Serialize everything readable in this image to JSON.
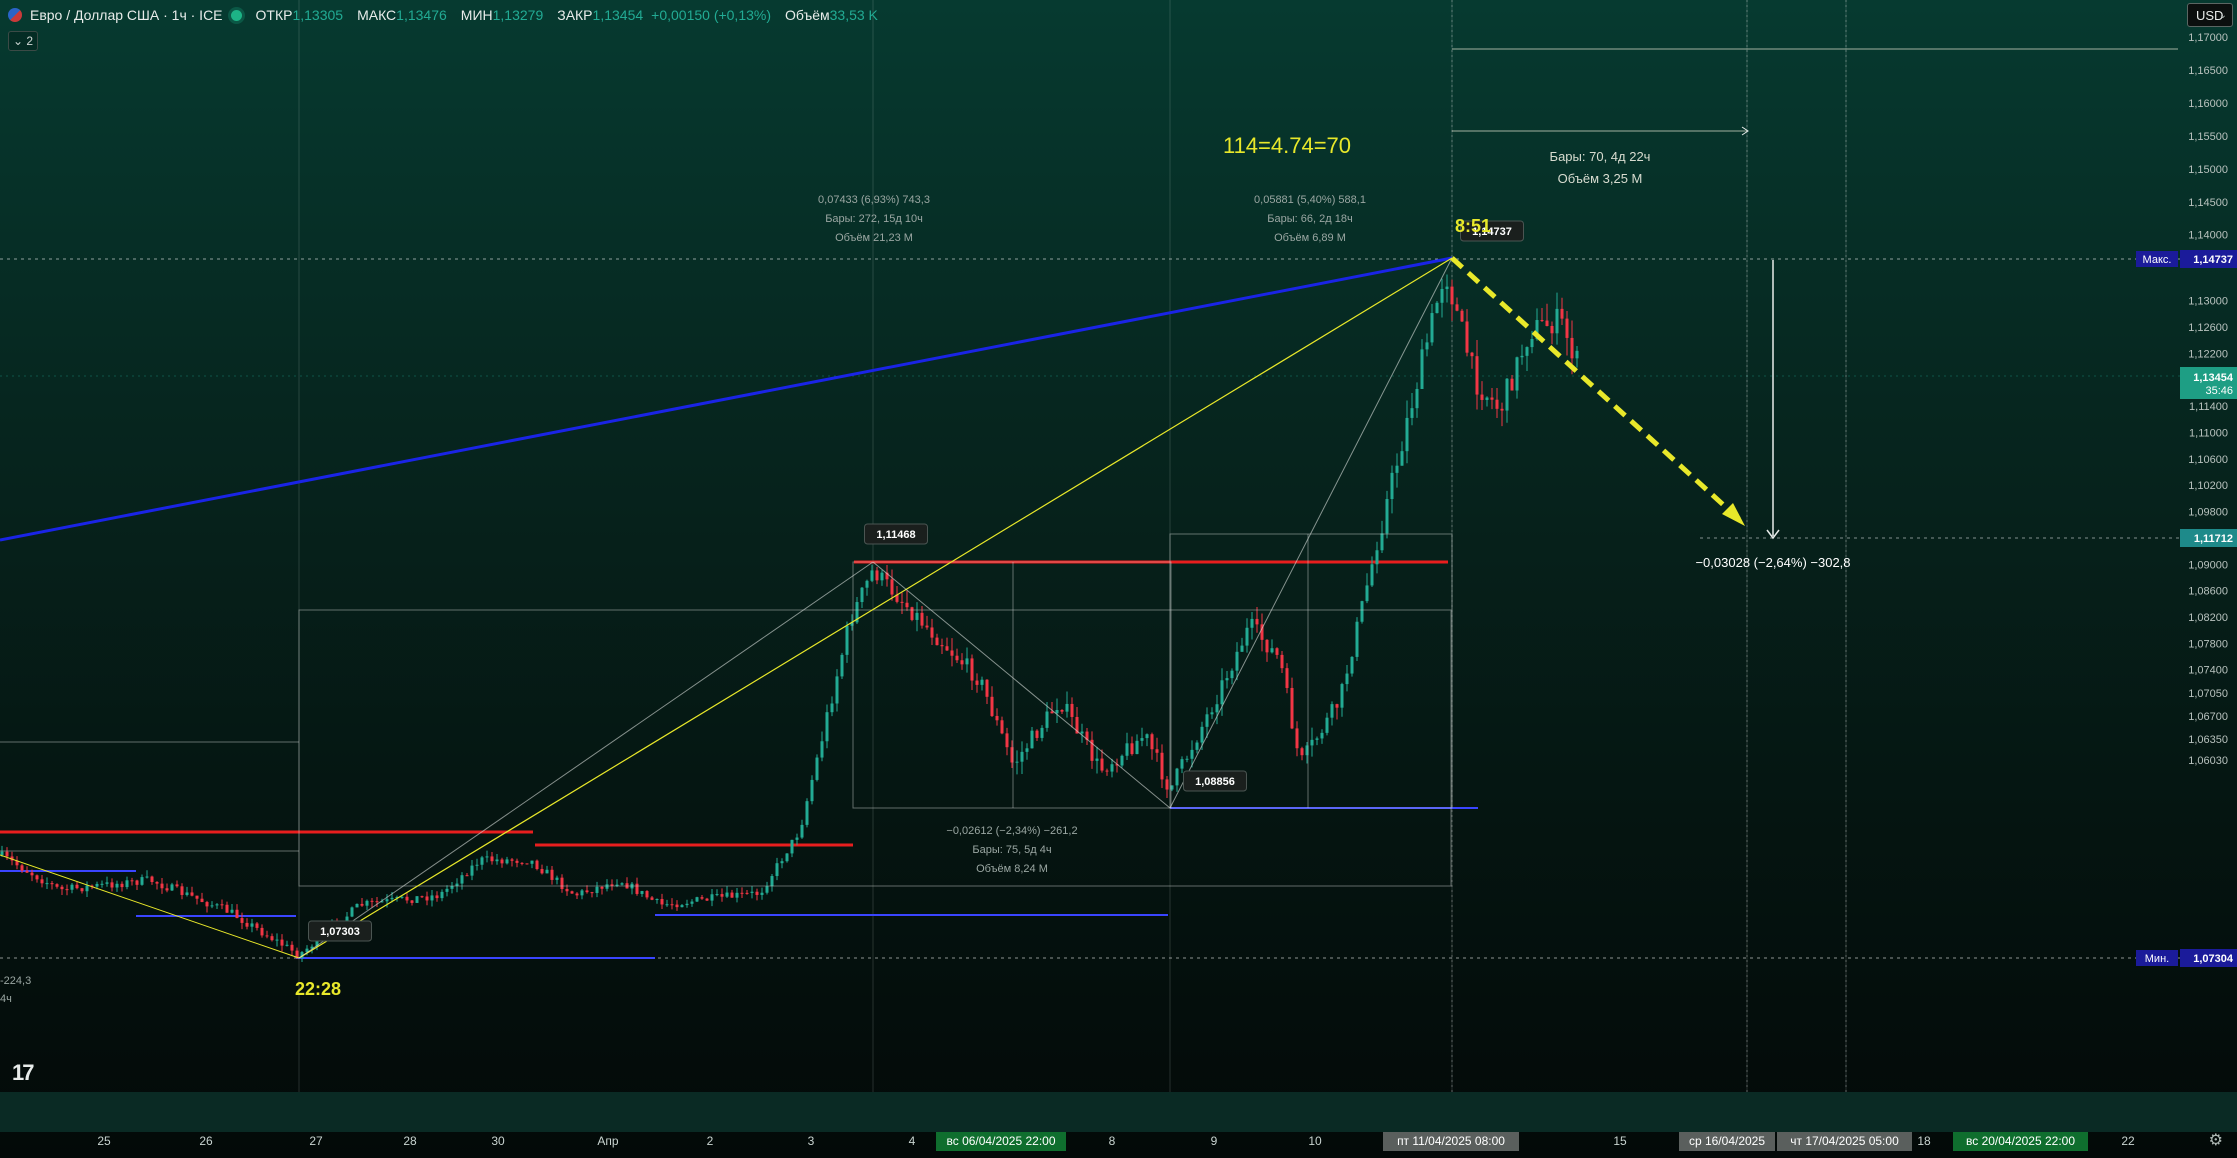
{
  "header": {
    "symbol": "Евро / Доллар США · 1ч · ICE",
    "open_label": "ОТКР",
    "open_value": "1,13305",
    "high_label": "МАКС",
    "high_value": "1,13476",
    "low_label": "МИН",
    "low_value": "1,13279",
    "close_label": "ЗАКР",
    "close_value": "1,13454",
    "change": "+0,00150 (+0,13%)",
    "volume_label": "Объём",
    "volume_value": "33,53 K"
  },
  "indicators_toggle": "⌄ 2",
  "currency_button": "USD",
  "price_axis_labels": [
    "1,17000",
    "1,16500",
    "1,16000",
    "1,15500",
    "1,15000",
    "1,14500",
    "1,14000",
    "1,13000",
    "1,12600",
    "1,12200",
    "1,11800",
    "1,11400",
    "1,11000",
    "1,10600",
    "1,10200",
    "1,09800",
    "1,09400",
    "1,09000",
    "1,08600",
    "1,08200",
    "1,07800",
    "1,07400",
    "1,07050",
    "1,06700",
    "1,06350",
    "1,06030"
  ],
  "price_tags": {
    "max_label": "Макс.",
    "max_value": "1,14737",
    "current_value": "1,13454",
    "countdown": "35:46",
    "target_value": "1,11712",
    "min_label": "Мин.",
    "min_value": "1,07304"
  },
  "time_axis": {
    "ticks": [
      "25",
      "26",
      "27",
      "28",
      "30",
      "Апр",
      "2",
      "3",
      "4",
      "8",
      "9",
      "10",
      "15",
      "18",
      "22"
    ],
    "highlights": [
      "вс 06/04/2025   22:00",
      "пт 11/04/2025   08:00",
      "ср 16/04/2025",
      "чт 17/04/2025   05:00",
      "вс 20/04/2025   22:00"
    ]
  },
  "annotations": {
    "formula": "114=4.74=70",
    "time_peak": "8:51",
    "time_low": "22:28",
    "label_peak": "1,14737",
    "label_1": "1,11468",
    "label_2": "1,08856",
    "label_low": "1,07303",
    "proj_target": "−0,03028 (−2,64%) −302,8",
    "proj_right_1": "Бары: 70, 4д 22ч",
    "proj_right_2": "Объём 3,25 M",
    "m1_1": "0,07433 (6,93%) 743,3",
    "m1_2": "Бары: 272, 15д 10ч",
    "m1_3": "Объём 21,23 M",
    "m2_1": "0,05881 (5,40%) 588,1",
    "m2_2": "Бары: 66, 2д 18ч",
    "m2_3": "Объём 6,89 M",
    "m3_1": "−0,02612 (−2,34%) −261,2",
    "m3_2": "Бары: 75, 5д 4ч",
    "m3_3": "Объём 8,24 M",
    "left_1": "-224,3",
    "left_2": "4ч"
  },
  "logo": "17",
  "colors": {
    "up": "#22ab94",
    "down": "#f23645",
    "trend_blue": "#1a24e6",
    "red_level": "#e81e1e",
    "blue_level": "#3a45ff",
    "yellow": "#e8e82a"
  },
  "chart_data": {
    "type": "candlestick",
    "instrument": "Евро / Доллар США",
    "timeframe": "1ч",
    "ylim": [
      1.0603,
      1.17
    ],
    "x": [
      "25",
      "26",
      "27",
      "28",
      "30",
      "Апр",
      "2",
      "3",
      "4",
      "8",
      "9",
      "10",
      "15",
      "18",
      "22"
    ],
    "pivots": [
      {
        "label": "1,07303"
      },
      {
        "label": "1,11468"
      },
      {
        "label": "1,08856"
      },
      {
        "label": "1,14737"
      },
      {
        "label": "1,11712"
      }
    ],
    "current_close": 1.13454
  }
}
